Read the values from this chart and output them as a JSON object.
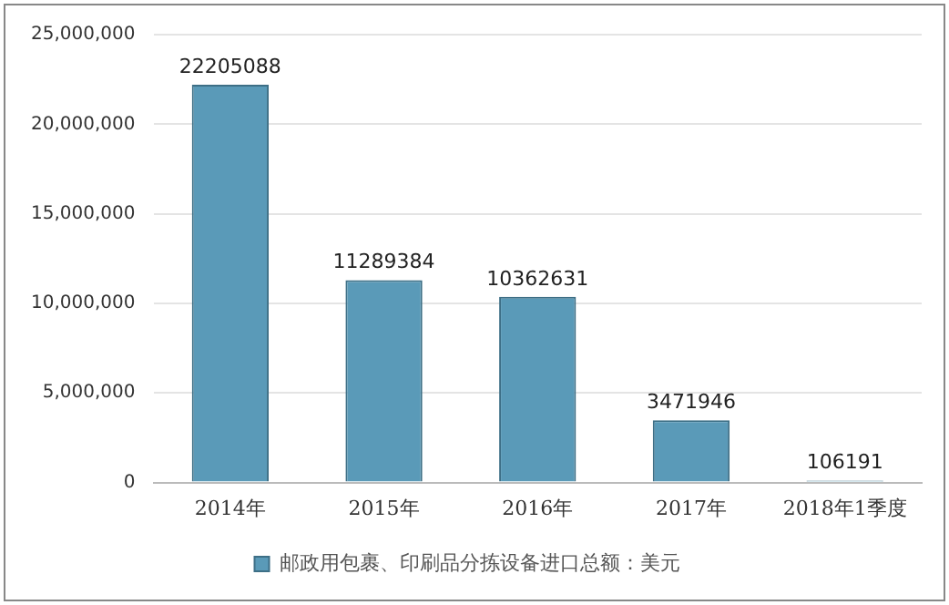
{
  "chart_data": {
    "type": "bar",
    "categories": [
      "2014年",
      "2015年",
      "2016年",
      "2017年",
      "2018年1季度"
    ],
    "series": [
      {
        "name": "邮政用包裹、印刷品分拣设备进口总额：美元",
        "color": "#5a9ab8",
        "values": [
          22205088,
          11289384,
          10362631,
          3471946,
          106191
        ]
      }
    ],
    "ylim": [
      0,
      25000000
    ],
    "yticks": [
      {
        "value": 0,
        "label": "0"
      },
      {
        "value": 5000000,
        "label": "5,000,000"
      },
      {
        "value": 10000000,
        "label": "10,000,000"
      },
      {
        "value": 15000000,
        "label": "15,000,000"
      },
      {
        "value": 20000000,
        "label": "20,000,000"
      },
      {
        "value": 25000000,
        "label": "25,000,000"
      }
    ],
    "grid": "y",
    "legend": "bottom",
    "data_labels": true
  }
}
